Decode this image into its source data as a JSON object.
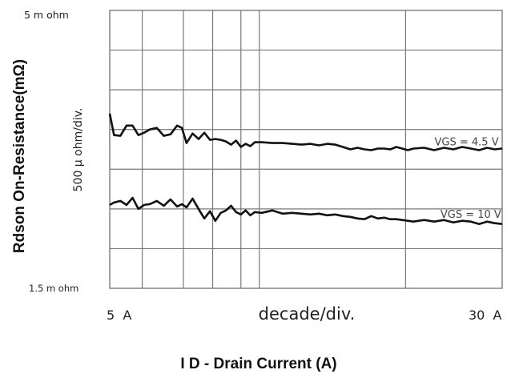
{
  "chart_data": {
    "type": "line",
    "title": "",
    "xlabel": "I D - Drain Current (A)",
    "ylabel": "Rdson On-Resistance(mΩ)",
    "y_scale_label": "500 µ ohm/div.",
    "x_scale_label": "decade/div.",
    "x_scale": "log",
    "xlim": [
      5,
      30
    ],
    "ylim": [
      1.5,
      5
    ],
    "x_tick_labels": [
      {
        "value": 5,
        "label": "5  A"
      },
      {
        "value": 30,
        "label": "30  A"
      }
    ],
    "y_tick_labels": [
      {
        "value": 5,
        "label": "5 m  ohm"
      },
      {
        "value": 1.5,
        "label": "1.5 m  ohm"
      }
    ],
    "grid": true,
    "x_gridlines": [
      5.8,
      7.0,
      8.0,
      9.1,
      9.9,
      19.3
    ],
    "y_gridlines": [
      4.5,
      4.0,
      3.5,
      3.0,
      2.5,
      2.0
    ],
    "series": [
      {
        "name": "VGS = 4.5 V",
        "x": [
          5.0,
          5.1,
          5.25,
          5.4,
          5.55,
          5.7,
          5.85,
          6.0,
          6.2,
          6.4,
          6.6,
          6.8,
          6.95,
          7.1,
          7.3,
          7.5,
          7.7,
          7.9,
          8.1,
          8.3,
          8.5,
          8.7,
          8.9,
          9.1,
          9.3,
          9.5,
          9.7,
          10.0,
          10.5,
          11.0,
          11.5,
          12.0,
          12.5,
          13.0,
          13.5,
          14.0,
          14.5,
          15.0,
          15.5,
          16.0,
          16.5,
          17.0,
          17.5,
          18.0,
          18.5,
          19.0,
          19.5,
          20.0,
          21.0,
          22.0,
          23.0,
          24.0,
          25.0,
          26.0,
          27.0,
          28.0,
          29.0,
          30.0
        ],
        "y": [
          3.7,
          3.43,
          3.42,
          3.55,
          3.55,
          3.43,
          3.46,
          3.5,
          3.52,
          3.42,
          3.44,
          3.55,
          3.52,
          3.33,
          3.45,
          3.38,
          3.46,
          3.37,
          3.38,
          3.37,
          3.35,
          3.31,
          3.36,
          3.28,
          3.32,
          3.29,
          3.34,
          3.34,
          3.33,
          3.33,
          3.32,
          3.31,
          3.32,
          3.3,
          3.32,
          3.31,
          3.28,
          3.25,
          3.27,
          3.25,
          3.24,
          3.26,
          3.26,
          3.25,
          3.28,
          3.26,
          3.24,
          3.26,
          3.27,
          3.24,
          3.27,
          3.25,
          3.28,
          3.26,
          3.24,
          3.27,
          3.25,
          3.26
        ]
      },
      {
        "name": "VGS = 10 V",
        "x": [
          5.0,
          5.1,
          5.25,
          5.4,
          5.55,
          5.7,
          5.85,
          6.0,
          6.2,
          6.4,
          6.6,
          6.8,
          6.95,
          7.1,
          7.3,
          7.5,
          7.7,
          7.9,
          8.1,
          8.3,
          8.5,
          8.7,
          8.9,
          9.1,
          9.3,
          9.5,
          9.7,
          10.0,
          10.5,
          11.0,
          11.5,
          12.0,
          12.5,
          13.0,
          13.5,
          14.0,
          14.5,
          15.0,
          15.5,
          16.0,
          16.5,
          17.0,
          17.5,
          18.0,
          18.5,
          19.0,
          19.5,
          20.0,
          21.0,
          22.0,
          23.0,
          24.0,
          25.0,
          26.0,
          27.0,
          28.0,
          29.0,
          30.0
        ],
        "y": [
          2.55,
          2.58,
          2.6,
          2.55,
          2.64,
          2.5,
          2.55,
          2.56,
          2.6,
          2.54,
          2.62,
          2.53,
          2.56,
          2.52,
          2.63,
          2.5,
          2.38,
          2.47,
          2.35,
          2.45,
          2.48,
          2.54,
          2.46,
          2.43,
          2.48,
          2.42,
          2.46,
          2.45,
          2.48,
          2.44,
          2.45,
          2.44,
          2.43,
          2.44,
          2.42,
          2.43,
          2.41,
          2.4,
          2.38,
          2.37,
          2.41,
          2.38,
          2.39,
          2.37,
          2.37,
          2.36,
          2.35,
          2.34,
          2.36,
          2.34,
          2.36,
          2.33,
          2.35,
          2.34,
          2.31,
          2.34,
          2.32,
          2.31
        ]
      }
    ],
    "series_label_positions": [
      {
        "x": 25.5,
        "y": 3.3
      },
      {
        "x": 26.0,
        "y": 2.39
      }
    ]
  }
}
